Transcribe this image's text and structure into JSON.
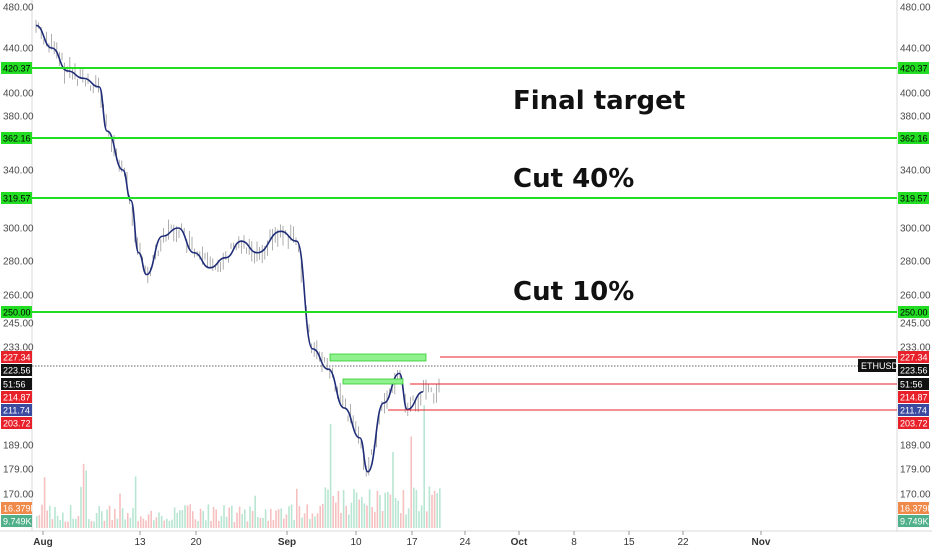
{
  "chart_data": {
    "type": "line",
    "symbol": "ETHUSD",
    "price_scale": {
      "ticks": [
        "480.00",
        "440.00",
        "420.37",
        "400.00",
        "380.00",
        "362.16",
        "340.00",
        "319.57",
        "300.00",
        "280.00",
        "260.00",
        "250.00",
        "245.00",
        "233.00",
        "227.34",
        "223.56",
        "51:56",
        "214.87",
        "211.74",
        "203.72",
        "189.00",
        "179.00",
        "170.00",
        "16.379K",
        "9.749K"
      ]
    },
    "x_axis": {
      "labels": [
        "Aug",
        "13",
        "20",
        "Sep",
        "10",
        "17",
        "24",
        "Oct",
        "8",
        "15",
        "22",
        "Nov"
      ]
    },
    "levels": [
      {
        "label": "420.37",
        "price": 420.37,
        "color": "#22dd22"
      },
      {
        "label": "362.16",
        "price": 362.16,
        "color": "#22dd22"
      },
      {
        "label": "319.57",
        "price": 319.57,
        "color": "#22dd22"
      },
      {
        "label": "250.00",
        "price": 250.0,
        "color": "#22dd22"
      },
      {
        "label": "227.34",
        "price": 227.34,
        "color": "#e8202a"
      },
      {
        "label": "214.87",
        "price": 214.87,
        "color": "#e8202a"
      },
      {
        "label": "203.72",
        "price": 203.72,
        "color": "#e8202a"
      }
    ],
    "current": {
      "price_label": "223.56",
      "countdown": "51:56",
      "sma_label": "211.74"
    },
    "volume": {
      "labels": [
        "16.379K",
        "9.749K"
      ]
    },
    "annotations": [
      "Final target",
      "Cut 40%",
      "Cut 10%"
    ],
    "price_series": [
      {
        "date": "Aug 1",
        "close": 462
      },
      {
        "date": "Aug 3",
        "close": 440
      },
      {
        "date": "Aug 5",
        "close": 418
      },
      {
        "date": "Aug 7",
        "close": 412
      },
      {
        "date": "Aug 9",
        "close": 405
      },
      {
        "date": "Aug 10",
        "close": 368
      },
      {
        "date": "Aug 12",
        "close": 340
      },
      {
        "date": "Aug 13",
        "close": 318
      },
      {
        "date": "Aug 14",
        "close": 285
      },
      {
        "date": "Aug 15",
        "close": 272
      },
      {
        "date": "Aug 17",
        "close": 295
      },
      {
        "date": "Aug 19",
        "close": 300
      },
      {
        "date": "Aug 21",
        "close": 285
      },
      {
        "date": "Aug 23",
        "close": 276
      },
      {
        "date": "Aug 25",
        "close": 282
      },
      {
        "date": "Aug 27",
        "close": 292
      },
      {
        "date": "Aug 29",
        "close": 285
      },
      {
        "date": "Sep 1",
        "close": 298
      },
      {
        "date": "Sep 3",
        "close": 292
      },
      {
        "date": "Sep 5",
        "close": 232
      },
      {
        "date": "Sep 7",
        "close": 222
      },
      {
        "date": "Sep 9",
        "close": 205
      },
      {
        "date": "Sep 11",
        "close": 192
      },
      {
        "date": "Sep 12",
        "close": 178
      },
      {
        "date": "Sep 14",
        "close": 208
      },
      {
        "date": "Sep 16",
        "close": 220
      },
      {
        "date": "Sep 17",
        "close": 204
      },
      {
        "date": "Sep 19",
        "close": 213
      }
    ]
  },
  "colors": {
    "green": "#22dd22",
    "red": "#e8202a",
    "sma": "#1f2d78",
    "blue_badge": "#3a4aa0",
    "vol_orange": "#f08a4b",
    "vol_teal": "#4fb08a"
  }
}
